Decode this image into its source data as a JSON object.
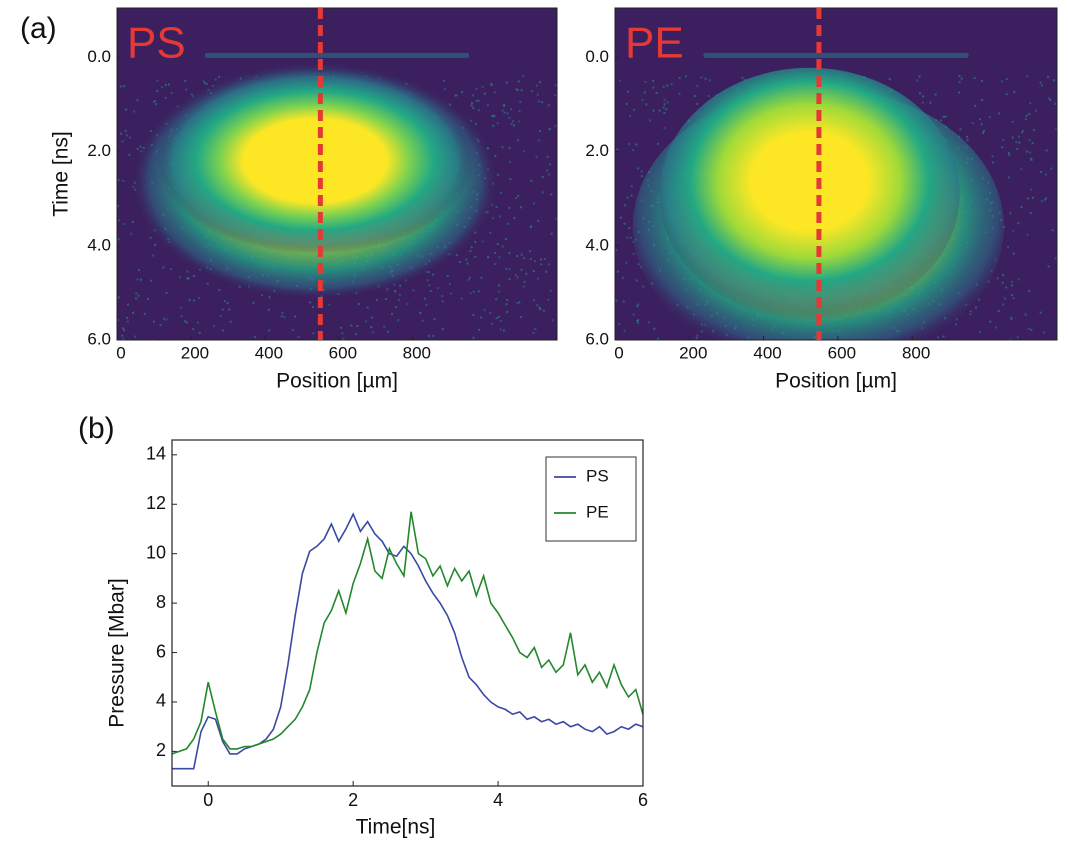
{
  "panel_labels": [
    "(a)",
    "(b)"
  ],
  "chart_data": [
    {
      "type": "heatmap",
      "annotation": "PS",
      "ylabel": "Time [ns]",
      "xlabel": "Position [µm]",
      "xlim": [
        0,
        1190
      ],
      "xticks": [
        0,
        200,
        400,
        600,
        800
      ],
      "ylim": [
        -1.05,
        6.0
      ],
      "y_inverted": true,
      "yticks": [
        {
          "value": 0,
          "label": "0.0"
        },
        {
          "value": 2,
          "label": "2.0"
        },
        {
          "value": 4,
          "label": "4.0"
        },
        {
          "value": 6,
          "label": "6.0"
        }
      ],
      "marker_x": 550,
      "marker_color": "#e53935",
      "annotation_color": "#e53935"
    },
    {
      "type": "heatmap",
      "annotation": "PE",
      "xlabel": "Position [µm]",
      "xlim": [
        0,
        1190
      ],
      "xticks": [
        0,
        200,
        400,
        600,
        800
      ],
      "ylim": [
        -1.05,
        6.0
      ],
      "y_inverted": true,
      "yticks": [
        {
          "value": 0,
          "label": "0.0"
        },
        {
          "value": 2,
          "label": "2.0"
        },
        {
          "value": 4,
          "label": "4.0"
        },
        {
          "value": 6,
          "label": "6.0"
        }
      ],
      "marker_x": 549,
      "marker_color": "#e53935",
      "annotation_color": "#e53935"
    },
    {
      "type": "line",
      "xlabel": "Time[ns]",
      "ylabel": "Pressure [Mbar]",
      "xlim": [
        -0.5,
        6
      ],
      "xticks": [
        0,
        2,
        4,
        6
      ],
      "ylim": [
        0.6,
        14.6
      ],
      "yticks": [
        2,
        4,
        6,
        8,
        10,
        12,
        14
      ],
      "legend": "upper right",
      "x": [
        -0.5,
        -0.4,
        -0.3,
        -0.2,
        -0.1,
        0.0,
        0.1,
        0.2,
        0.3,
        0.4,
        0.5,
        0.6,
        0.7,
        0.8,
        0.9,
        1.0,
        1.1,
        1.2,
        1.3,
        1.4,
        1.5,
        1.6,
        1.7,
        1.8,
        1.9,
        2.0,
        2.1,
        2.2,
        2.3,
        2.4,
        2.5,
        2.6,
        2.7,
        2.8,
        2.9,
        3.0,
        3.1,
        3.2,
        3.3,
        3.4,
        3.5,
        3.6,
        3.7,
        3.8,
        3.9,
        4.0,
        4.1,
        4.2,
        4.3,
        4.4,
        4.5,
        4.6,
        4.7,
        4.8,
        4.9,
        5.0,
        5.1,
        5.2,
        5.3,
        5.4,
        5.5,
        5.6,
        5.7,
        5.8,
        5.9,
        6.0
      ],
      "series": [
        {
          "name": "PS",
          "color": "#3a4aa3",
          "values": [
            1.3,
            1.3,
            1.3,
            1.3,
            2.8,
            3.4,
            3.3,
            2.4,
            1.9,
            1.9,
            2.1,
            2.2,
            2.3,
            2.5,
            2.9,
            3.8,
            5.5,
            7.5,
            9.2,
            10.1,
            10.3,
            10.6,
            11.2,
            10.5,
            11.0,
            11.6,
            10.9,
            11.3,
            10.8,
            10.5,
            10.0,
            9.9,
            10.3,
            10.0,
            9.5,
            8.9,
            8.4,
            8.0,
            7.5,
            6.8,
            5.8,
            5.0,
            4.7,
            4.3,
            4.0,
            3.8,
            3.7,
            3.5,
            3.6,
            3.3,
            3.4,
            3.2,
            3.3,
            3.1,
            3.2,
            3.0,
            3.1,
            2.9,
            2.8,
            3.0,
            2.7,
            2.8,
            3.0,
            2.9,
            3.1,
            3.0
          ]
        },
        {
          "name": "PE",
          "color": "#23882c",
          "values": [
            1.9,
            2.0,
            2.1,
            2.5,
            3.2,
            4.8,
            3.6,
            2.5,
            2.1,
            2.1,
            2.2,
            2.2,
            2.3,
            2.4,
            2.5,
            2.7,
            3.0,
            3.3,
            3.8,
            4.5,
            6.0,
            7.2,
            7.7,
            8.5,
            7.6,
            8.8,
            9.6,
            10.6,
            9.3,
            9.0,
            10.2,
            9.6,
            9.1,
            11.7,
            10.0,
            9.8,
            9.1,
            9.5,
            8.7,
            9.4,
            8.9,
            9.3,
            8.3,
            9.1,
            8.0,
            7.6,
            7.1,
            6.6,
            6.0,
            5.8,
            6.2,
            5.4,
            5.7,
            5.2,
            5.5,
            6.8,
            5.1,
            5.5,
            4.8,
            5.2,
            4.6,
            5.5,
            4.7,
            4.2,
            4.5,
            3.5
          ]
        }
      ]
    }
  ]
}
